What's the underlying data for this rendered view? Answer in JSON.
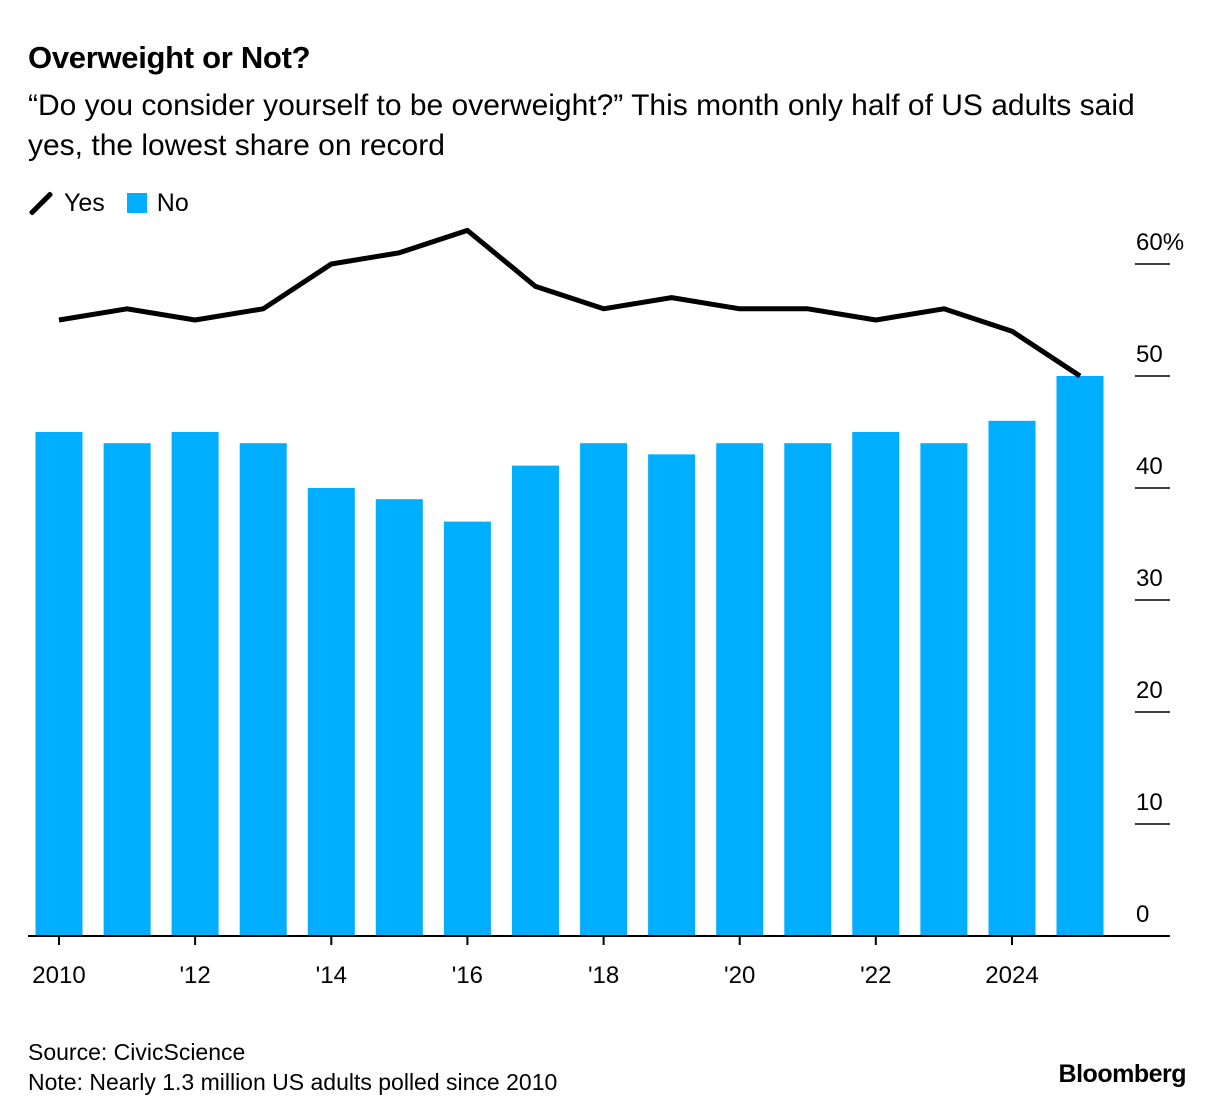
{
  "header": {
    "title": "Overweight or Not?",
    "subtitle": "“Do you consider yourself to be overweight?” This month only half of US adults said yes, the lowest share on record"
  },
  "legend": {
    "yes_label": "Yes",
    "no_label": "No"
  },
  "colors": {
    "yes_line": "#000000",
    "no_bar": "#00aeff",
    "axis": "#000000"
  },
  "footer": {
    "source": "Source: CivicScience",
    "note": "Note: Nearly 1.3 million US adults polled since 2010"
  },
  "brand": "Bloomberg",
  "chart_data": {
    "type": "bar",
    "title": "Overweight or Not?",
    "x": [
      2010,
      2011,
      2012,
      2013,
      2014,
      2015,
      2016,
      2017,
      2018,
      2019,
      2020,
      2021,
      2022,
      2023,
      2024,
      2025
    ],
    "x_tick_values": [
      2010,
      2012,
      2014,
      2016,
      2018,
      2020,
      2022,
      2024
    ],
    "x_tick_labels": [
      "2010",
      "'12",
      "'14",
      "'16",
      "'18",
      "'20",
      "'22",
      "2024"
    ],
    "y_tick_values": [
      0,
      10,
      20,
      30,
      40,
      50,
      60
    ],
    "y_tick_labels": [
      "0",
      "10",
      "20",
      "30",
      "40",
      "50",
      "60%"
    ],
    "ylim": [
      0,
      60
    ],
    "y_axis_side": "right",
    "legend_position": "top-left",
    "grid": false,
    "series": [
      {
        "name": "Yes",
        "type": "line",
        "values": [
          55,
          56,
          55,
          56,
          60,
          61,
          63,
          58,
          56,
          57,
          56,
          56,
          55,
          56,
          54,
          50
        ]
      },
      {
        "name": "No",
        "type": "bar",
        "values": [
          45,
          44,
          45,
          44,
          40,
          39,
          37,
          42,
          44,
          43,
          44,
          44,
          45,
          44,
          46,
          50
        ]
      }
    ]
  }
}
